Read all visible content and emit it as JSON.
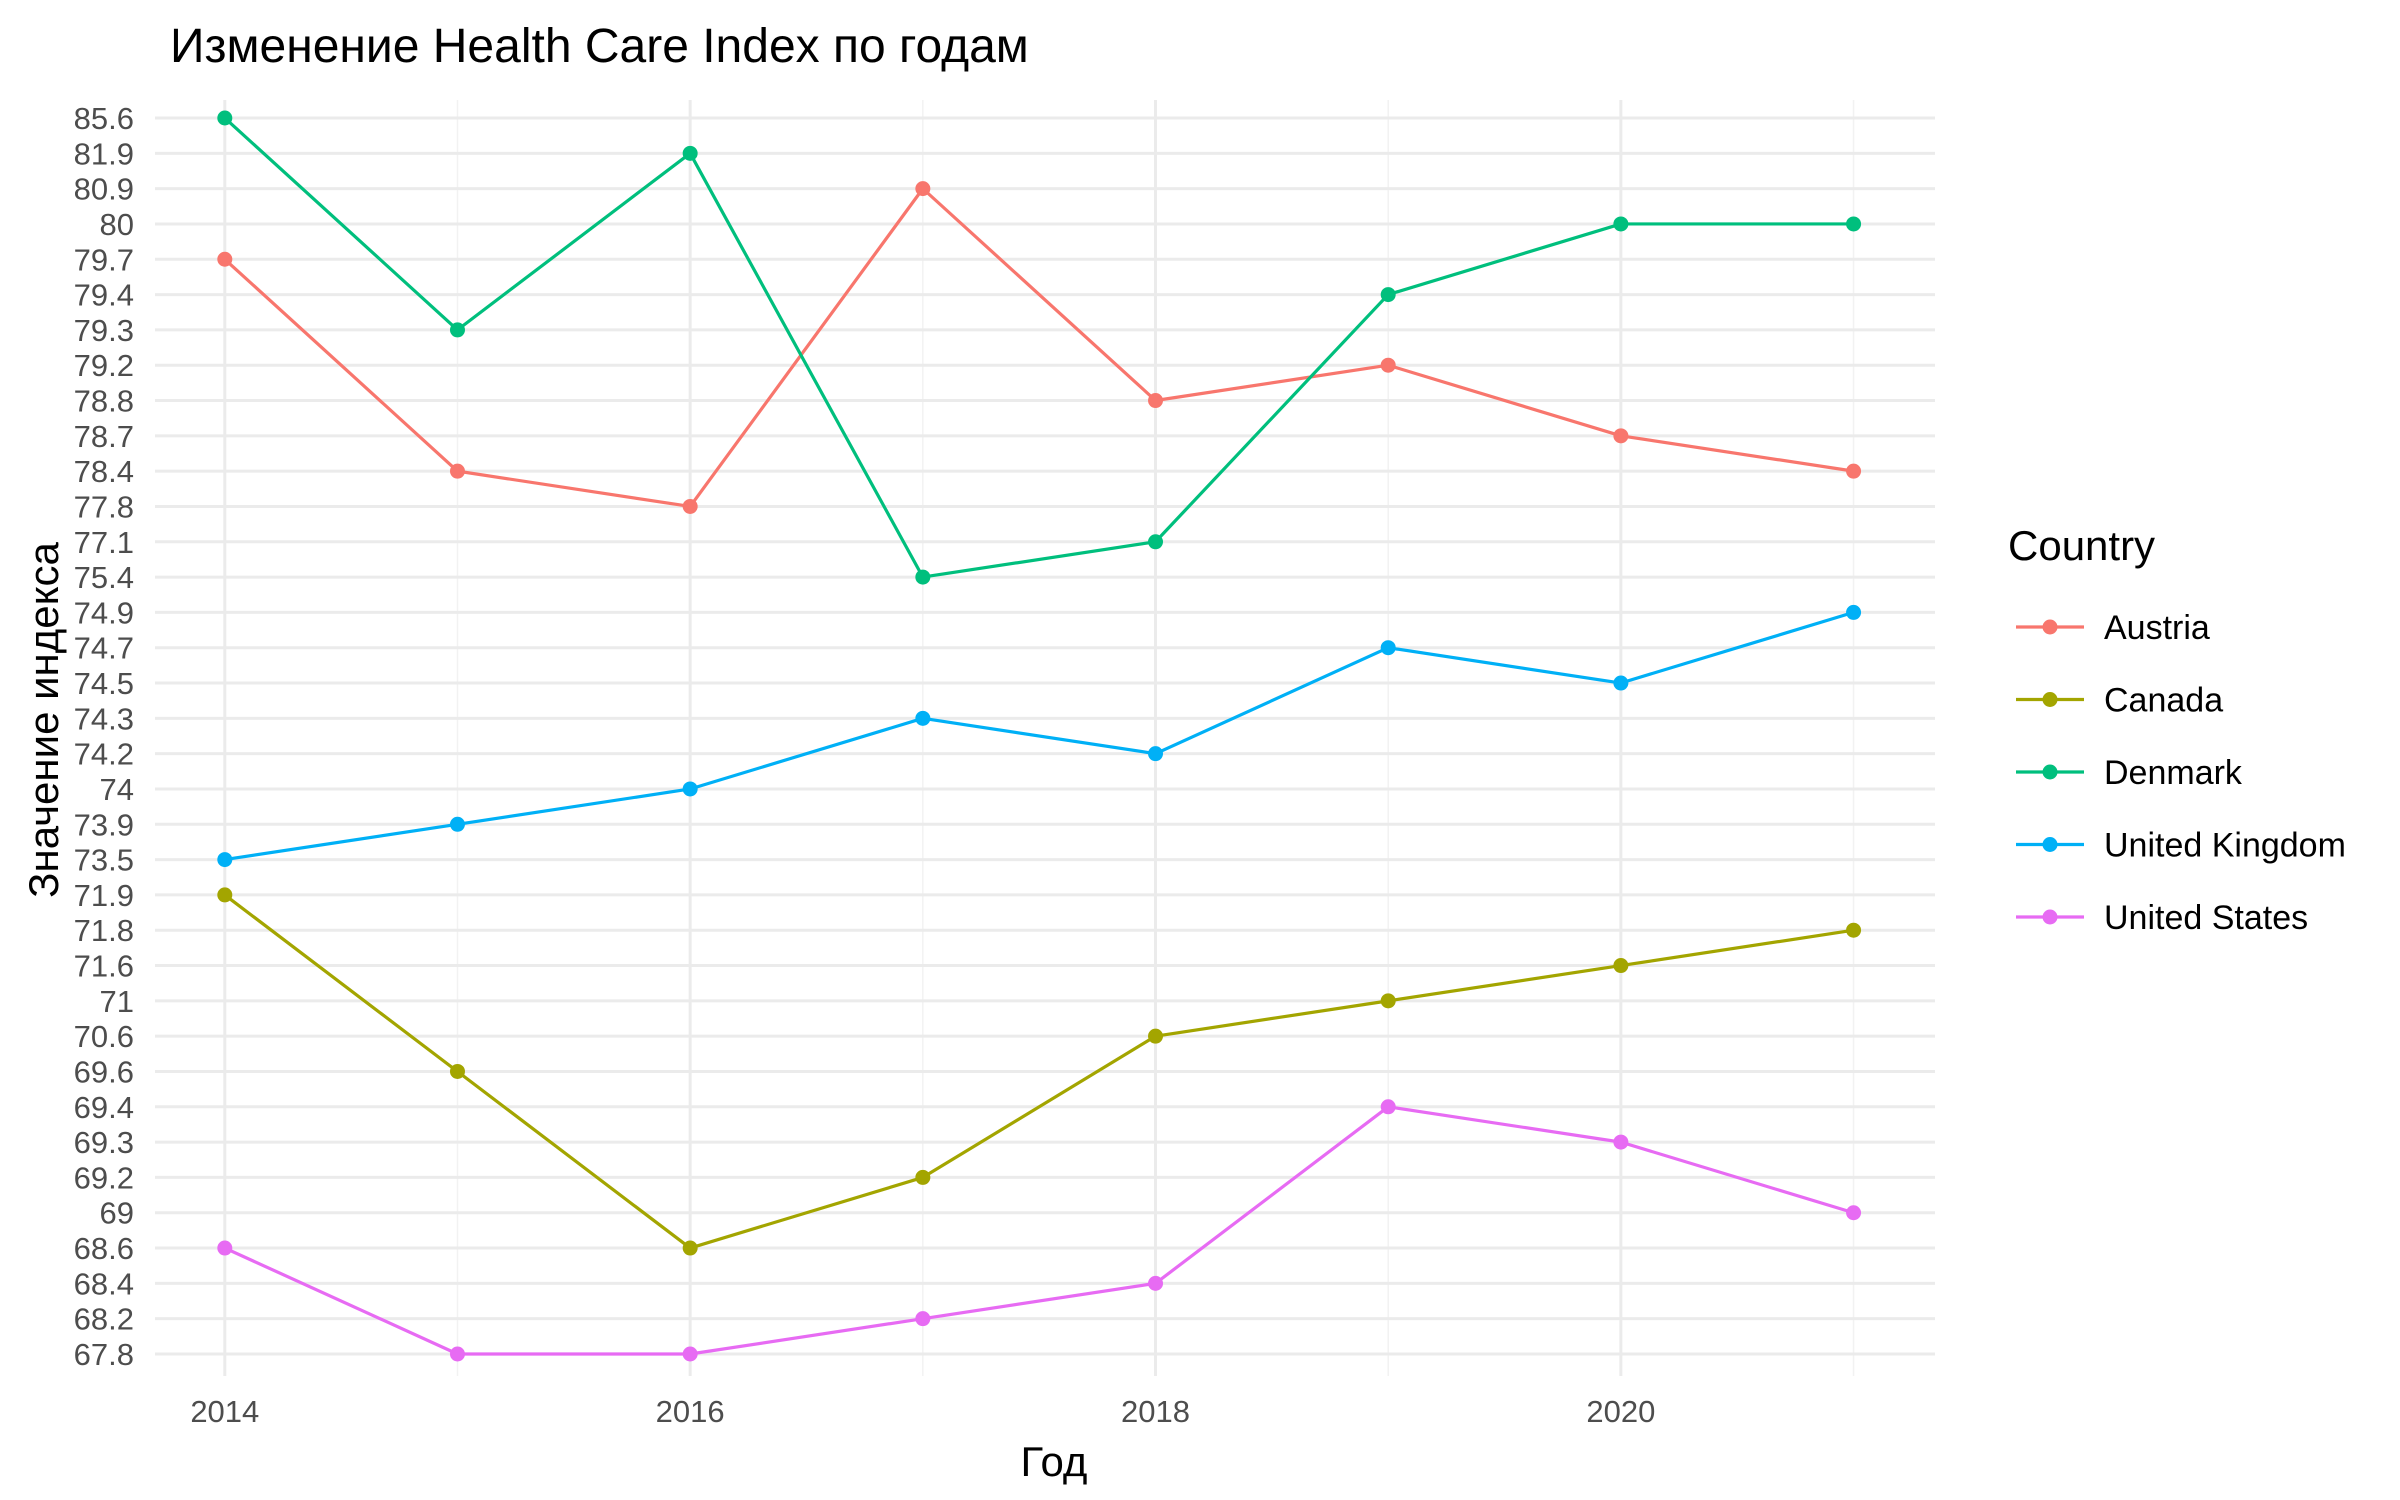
{
  "chart_data": {
    "type": "line",
    "title": "Изменение Health Care Index по годам",
    "xlabel": "Год",
    "ylabel": "Значение индекса",
    "x": [
      2014,
      2015,
      2016,
      2017,
      2018,
      2019,
      2020,
      2021
    ],
    "x_ticks": [
      "2014",
      "2016",
      "2018",
      "2020"
    ],
    "y_axis_scale": "discrete (each distinct value is an equally spaced level)",
    "y_ticks": [
      "67.8",
      "68.2",
      "68.4",
      "68.6",
      "69",
      "69.2",
      "69.3",
      "69.4",
      "69.6",
      "70.6",
      "71",
      "71.6",
      "71.8",
      "71.9",
      "73.5",
      "73.9",
      "74",
      "74.2",
      "74.3",
      "74.5",
      "74.7",
      "74.9",
      "75.4",
      "77.1",
      "77.8",
      "78.4",
      "78.7",
      "78.8",
      "79.2",
      "79.3",
      "79.4",
      "79.7",
      "80",
      "80.9",
      "81.9",
      "85.6"
    ],
    "grid": true,
    "legend_title": "Country",
    "legend_position": "right",
    "series": [
      {
        "name": "Austria",
        "color": "#F8766D",
        "values": [
          79.7,
          78.4,
          77.8,
          80.9,
          78.8,
          79.2,
          78.7,
          78.4
        ]
      },
      {
        "name": "Canada",
        "color": "#A3A500",
        "values": [
          71.9,
          69.6,
          68.6,
          69.2,
          70.6,
          71,
          71.6,
          71.8
        ]
      },
      {
        "name": "Denmark",
        "color": "#00BF7D",
        "values": [
          85.6,
          79.3,
          81.9,
          75.4,
          77.1,
          79.4,
          80,
          80
        ]
      },
      {
        "name": "United Kingdom",
        "color": "#00B0F6",
        "values": [
          73.5,
          73.9,
          74,
          74.3,
          74.2,
          74.7,
          74.5,
          74.9
        ]
      },
      {
        "name": "United States",
        "color": "#E76BF3",
        "values": [
          68.6,
          67.8,
          67.8,
          68.2,
          68.4,
          69.4,
          69.3,
          69
        ]
      }
    ]
  }
}
